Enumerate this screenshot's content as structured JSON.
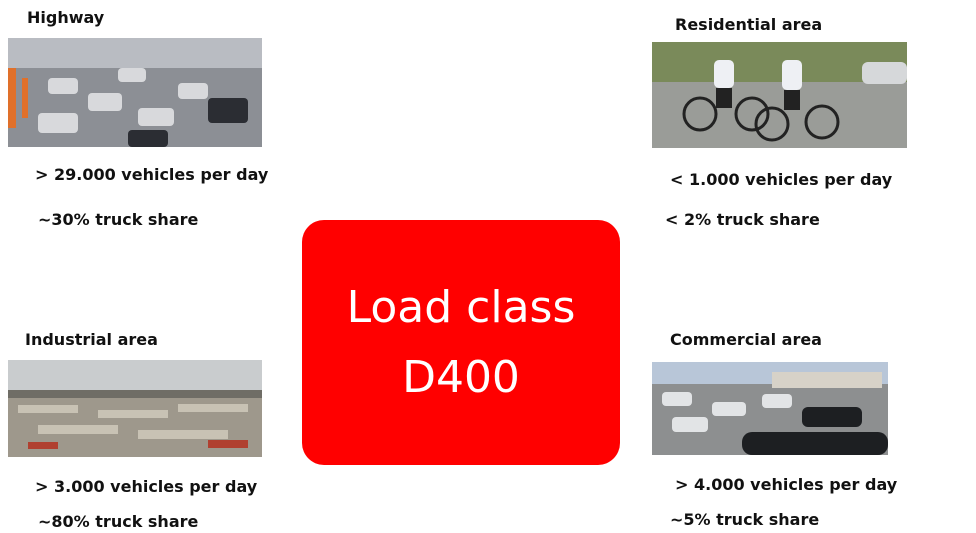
{
  "center": {
    "lines": [
      "Load class",
      "D400"
    ]
  },
  "areas": [
    {
      "title": "Highway",
      "lines": [
        "> 29.000 vehicles per day",
        "~30% truck share"
      ]
    },
    {
      "title": "Residential area",
      "lines": [
        "< 1.000 vehicles per day",
        "< 2% truck share"
      ]
    },
    {
      "title": "Industrial area",
      "lines": [
        "> 3.000 vehicles per day",
        "~80% truck share"
      ]
    },
    {
      "title": "Commercial area",
      "lines": [
        "> 4.000 vehicles per day",
        "~5% truck share"
      ]
    }
  ]
}
